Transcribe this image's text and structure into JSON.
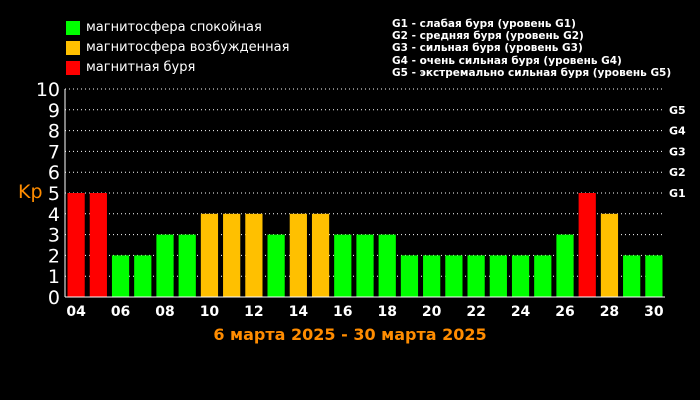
{
  "legend": {
    "items": [
      {
        "label": "магнитосфера спокойная",
        "color": "#00ff00"
      },
      {
        "label": "магнитосфера возбужденная",
        "color": "#ffc000"
      },
      {
        "label": "магнитная буря",
        "color": "#ff0000"
      }
    ],
    "g_levels": [
      "G1 - слабая буря (уровень G1)",
      "G2 - средняя буря (уровень G2)",
      "G3 - сильная буря (уровень G3)",
      "G4 - очень сильная буря (уровень G4)",
      "G5 - экстремально сильная буря (уровень G5)"
    ]
  },
  "chart_data": {
    "type": "bar",
    "ylabel": "Kp",
    "title": "6 марта 2025 - 30 марта 2025",
    "ylim": [
      0,
      10
    ],
    "yticks": [
      "0",
      "1",
      "2",
      "3",
      "4",
      "5",
      "6",
      "7",
      "8",
      "9",
      "10"
    ],
    "g_ticks": [
      {
        "level": 5,
        "label": "G1"
      },
      {
        "level": 6,
        "label": "G2"
      },
      {
        "level": 7,
        "label": "G3"
      },
      {
        "level": 8,
        "label": "G4"
      },
      {
        "level": 9,
        "label": "G5"
      }
    ],
    "x_tick_labels": [
      "04",
      "06",
      "08",
      "10",
      "12",
      "14",
      "16",
      "18",
      "20",
      "22",
      "24",
      "26",
      "28",
      "30"
    ],
    "values": [
      5,
      5,
      2,
      2,
      3,
      3,
      4,
      4,
      4,
      3,
      4,
      4,
      3,
      3,
      3,
      2,
      2,
      2,
      2,
      2,
      2,
      2,
      3,
      5,
      4,
      2,
      2
    ],
    "colors": {
      "quiet": "#00ff00",
      "active": "#ffc000",
      "storm": "#ff0000",
      "ylabel": "#ff8c00",
      "title": "#ff8c00",
      "grid": "#ffffff"
    }
  }
}
